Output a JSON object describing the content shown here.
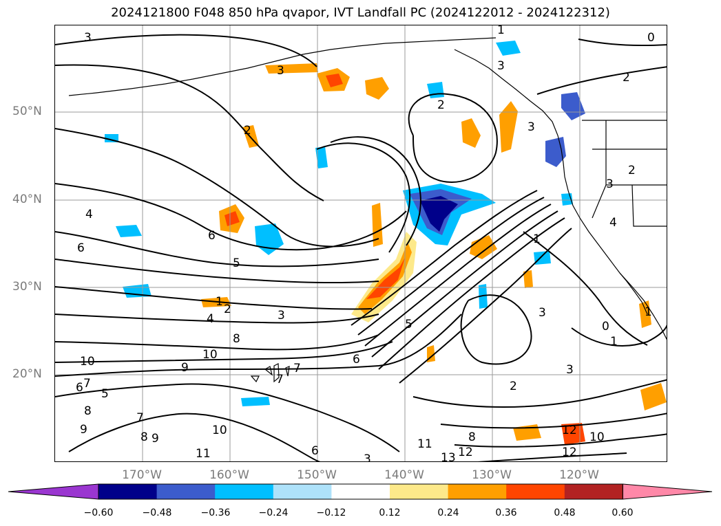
{
  "title": "2024121800 F048 850 hPa qvapor, IVT Landfall PC (2024122012 - 2024122312)",
  "lat_labels": [
    "50°N",
    "40°N",
    "30°N",
    "20°N"
  ],
  "lon_labels": [
    "170°W",
    "160°W",
    "150°W",
    "140°W",
    "130°W",
    "120°W"
  ],
  "colorbar": {
    "colors": [
      "#9a36d0",
      "#00008a",
      "#3c5ccc",
      "#00bfff",
      "#aee2fa",
      "#ffffff",
      "#fde98a",
      "#ff9f00",
      "#ff4500",
      "#b22222",
      "#ff88a8"
    ],
    "tick_labels": [
      "−0.60",
      "−0.48",
      "−0.36",
      "−0.24",
      "−0.12",
      "0.12",
      "0.24",
      "0.36",
      "0.48",
      "0.60"
    ]
  },
  "contour_labels": [
    "3",
    "3",
    "2",
    "1",
    "3",
    "2",
    "0",
    "2",
    "3",
    "2",
    "3",
    "4",
    "4",
    "6",
    "6",
    "5",
    "1",
    "2",
    "4",
    "3",
    "3",
    "8",
    "10",
    "10",
    "9",
    "6",
    "7",
    "5",
    "7",
    "7",
    "6",
    "5",
    "3",
    "1",
    "0",
    "1",
    "2",
    "3",
    "8",
    "7",
    "8",
    "9",
    "9",
    "10",
    "11",
    "6",
    "11",
    "12",
    "13",
    "12",
    "10",
    "8",
    "12",
    "1"
  ],
  "colors": {
    "contour": "#000000",
    "gridline": "#9a9a9a",
    "axis_label": "#7a7a7a"
  }
}
